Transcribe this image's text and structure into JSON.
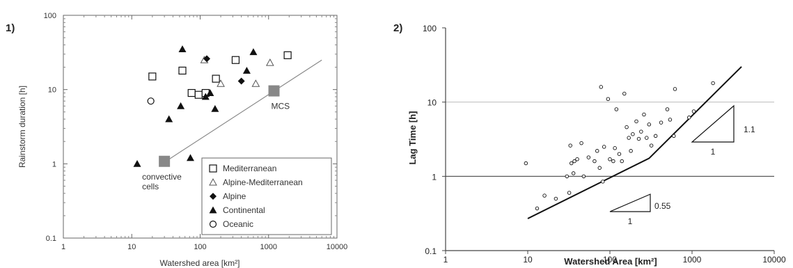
{
  "chart_data": [
    {
      "panel_label": "1)",
      "type": "scatter",
      "x_scale": "log",
      "y_scale": "log",
      "xlim": [
        1,
        10000
      ],
      "ylim": [
        0.1,
        100
      ],
      "x_tick_labels": [
        "1",
        "10",
        "100",
        "1000",
        "10000"
      ],
      "y_tick_labels": [
        "0.1",
        "1",
        "10",
        "100"
      ],
      "xlabel": "Watershed area [km²]",
      "ylabel": "Rainstorm duration [h]",
      "grid": false,
      "legend_position": "bottom-right",
      "series": [
        {
          "name": "Mediterranean",
          "marker": "open-square",
          "points": [
            [
              20,
              15
            ],
            [
              55,
              18
            ],
            [
              75,
              9
            ],
            [
              95,
              8.5
            ],
            [
              120,
              9
            ],
            [
              170,
              14
            ],
            [
              330,
              25
            ],
            [
              1900,
              29
            ]
          ]
        },
        {
          "name": "Alpine-Mediterranean",
          "marker": "open-triangle",
          "points": [
            [
              115,
              25
            ],
            [
              200,
              12
            ],
            [
              650,
              12
            ],
            [
              1050,
              23
            ]
          ]
        },
        {
          "name": "Alpine",
          "marker": "filled-diamond",
          "points": [
            [
              125,
              26
            ],
            [
              400,
              13
            ]
          ]
        },
        {
          "name": "Continental",
          "marker": "filled-triangle",
          "points": [
            [
              12,
              1
            ],
            [
              35,
              4
            ],
            [
              52,
              6
            ],
            [
              55,
              35
            ],
            [
              72,
              1.2
            ],
            [
              120,
              8
            ],
            [
              140,
              9
            ],
            [
              165,
              5.5
            ],
            [
              480,
              18
            ],
            [
              600,
              32
            ]
          ]
        },
        {
          "name": "Oceanic",
          "marker": "open-circle",
          "points": [
            [
              19,
              7
            ]
          ]
        }
      ],
      "trend_line": [
        [
          30,
          1.05
        ],
        [
          6000,
          25
        ]
      ],
      "big_markers": [
        {
          "label": "convective cells",
          "x": 30,
          "y": 1.08
        },
        {
          "label": "MCS",
          "x": 1200,
          "y": 9.6
        }
      ]
    },
    {
      "panel_label": "2)",
      "type": "scatter",
      "x_scale": "log",
      "y_scale": "log",
      "xlim": [
        1,
        10000
      ],
      "ylim": [
        0.1,
        100
      ],
      "x_tick_labels": [
        "1",
        "10",
        "100",
        "1000",
        "10000"
      ],
      "y_tick_labels": [
        "0.1",
        "1",
        "10",
        "100"
      ],
      "xlabel": "Watershed Area [km²]",
      "ylabel": "Lag Time [h]",
      "grid": "horizontal",
      "points": [
        [
          9.5,
          1.5
        ],
        [
          13,
          0.37
        ],
        [
          16,
          0.55
        ],
        [
          22,
          0.5
        ],
        [
          30,
          1
        ],
        [
          32,
          0.6
        ],
        [
          33,
          2.6
        ],
        [
          34,
          1.5
        ],
        [
          36,
          1.1
        ],
        [
          37,
          1.6
        ],
        [
          40,
          1.7
        ],
        [
          45,
          2.8
        ],
        [
          48,
          1
        ],
        [
          55,
          1.8
        ],
        [
          65,
          1.6
        ],
        [
          70,
          2.2
        ],
        [
          75,
          1.3
        ],
        [
          78,
          16
        ],
        [
          82,
          0.85
        ],
        [
          85,
          2.5
        ],
        [
          95,
          11
        ],
        [
          100,
          1.7
        ],
        [
          110,
          1.6
        ],
        [
          115,
          2.4
        ],
        [
          120,
          8
        ],
        [
          130,
          2
        ],
        [
          140,
          1.6
        ],
        [
          150,
          13
        ],
        [
          160,
          4.6
        ],
        [
          170,
          3.3
        ],
        [
          180,
          2.2
        ],
        [
          190,
          3.7
        ],
        [
          210,
          5.5
        ],
        [
          225,
          3.2
        ],
        [
          240,
          4
        ],
        [
          260,
          6.8
        ],
        [
          280,
          3.3
        ],
        [
          300,
          5
        ],
        [
          320,
          2.6
        ],
        [
          360,
          3.5
        ],
        [
          420,
          5.3
        ],
        [
          500,
          8
        ],
        [
          540,
          5.8
        ],
        [
          600,
          3.5
        ],
        [
          620,
          15
        ],
        [
          920,
          6.2
        ],
        [
          1050,
          7.5
        ],
        [
          1800,
          18
        ]
      ],
      "regression_line": [
        [
          10,
          0.27
        ],
        [
          300,
          1.75
        ],
        [
          4000,
          30
        ]
      ],
      "slope_annotations": [
        {
          "slope_label": "0.55",
          "run_label": "1"
        },
        {
          "slope_label": "1.1",
          "run_label": "1"
        }
      ]
    }
  ]
}
